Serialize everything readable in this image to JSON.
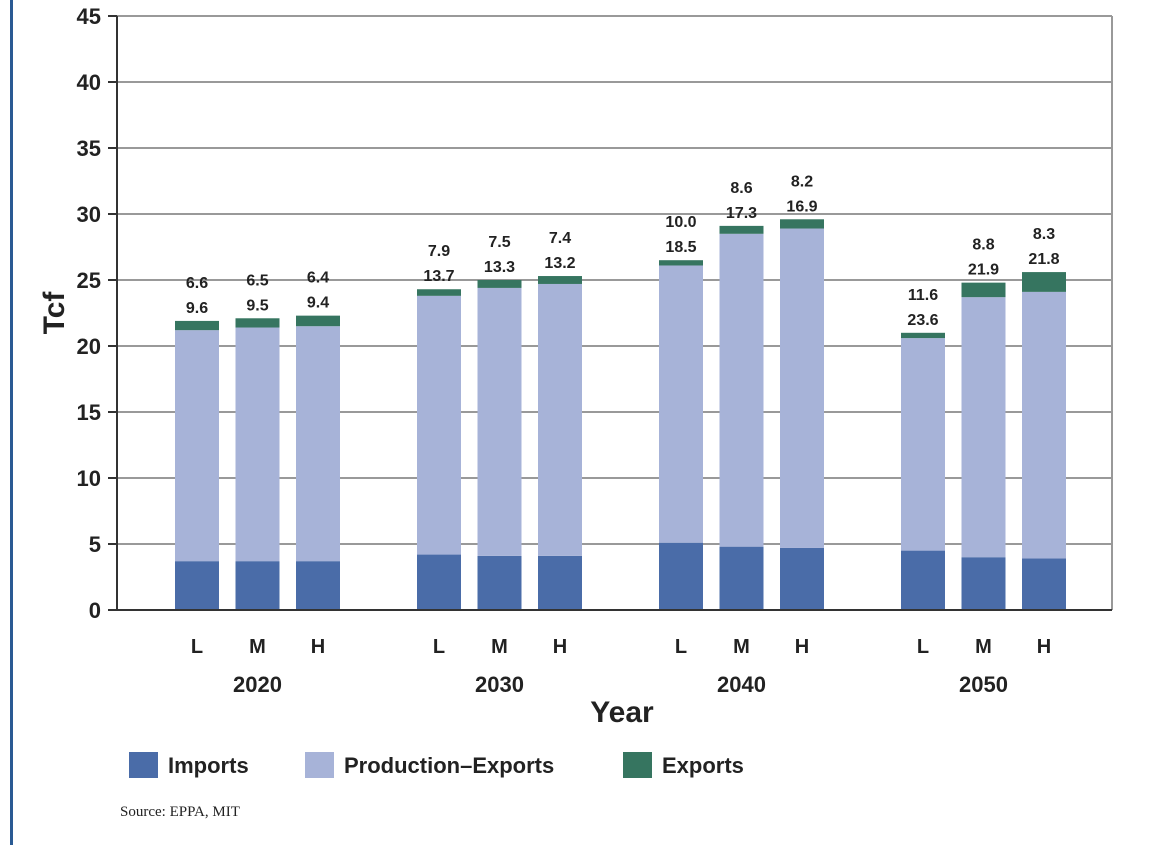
{
  "chart_data": {
    "type": "bar",
    "stacked": true,
    "ylabel": "Tcf",
    "xlabel": "Year",
    "ylim": [
      0,
      45
    ],
    "yticks": [
      0,
      5,
      10,
      15,
      20,
      25,
      30,
      35,
      40,
      45
    ],
    "grid": true,
    "legend_position": "bottom",
    "groups": [
      {
        "label": "2020",
        "bars": [
          {
            "label": "L",
            "imports": 3.7,
            "production_exports": 17.5,
            "exports": 0.7,
            "label_top": "6.6",
            "label_bottom": "9.6"
          },
          {
            "label": "M",
            "imports": 3.7,
            "production_exports": 17.7,
            "exports": 0.7,
            "label_top": "6.5",
            "label_bottom": "9.5"
          },
          {
            "label": "H",
            "imports": 3.7,
            "production_exports": 17.8,
            "exports": 0.8,
            "label_top": "6.4",
            "label_bottom": "9.4"
          }
        ]
      },
      {
        "label": "2030",
        "bars": [
          {
            "label": "L",
            "imports": 4.2,
            "production_exports": 19.6,
            "exports": 0.5,
            "label_top": "7.9",
            "label_bottom": "13.7"
          },
          {
            "label": "M",
            "imports": 4.1,
            "production_exports": 20.3,
            "exports": 0.6,
            "label_top": "7.5",
            "label_bottom": "13.3"
          },
          {
            "label": "H",
            "imports": 4.1,
            "production_exports": 20.6,
            "exports": 0.6,
            "label_top": "7.4",
            "label_bottom": "13.2"
          }
        ]
      },
      {
        "label": "2040",
        "bars": [
          {
            "label": "L",
            "imports": 5.1,
            "production_exports": 21.0,
            "exports": 0.4,
            "label_top": "10.0",
            "label_bottom": "18.5"
          },
          {
            "label": "M",
            "imports": 4.8,
            "production_exports": 23.7,
            "exports": 0.6,
            "label_top": "8.6",
            "label_bottom": "17.3"
          },
          {
            "label": "H",
            "imports": 4.7,
            "production_exports": 24.2,
            "exports": 0.7,
            "label_top": "8.2",
            "label_bottom": "16.9"
          }
        ]
      },
      {
        "label": "2050",
        "bars": [
          {
            "label": "L",
            "imports": 4.5,
            "production_exports": 16.1,
            "exports": 0.4,
            "label_top": "11.6",
            "label_bottom": "23.6"
          },
          {
            "label": "M",
            "imports": 4.0,
            "production_exports": 19.7,
            "exports": 1.1,
            "label_top": "8.8",
            "label_bottom": "21.9"
          },
          {
            "label": "H",
            "imports": 3.9,
            "production_exports": 20.2,
            "exports": 1.5,
            "label_top": "8.3",
            "label_bottom": "21.8"
          }
        ]
      }
    ],
    "series": [
      {
        "key": "imports",
        "name": "Imports",
        "color": "#4a6ca8"
      },
      {
        "key": "production_exports",
        "name": "Production–Exports",
        "color": "#a7b3d8"
      },
      {
        "key": "exports",
        "name": "Exports",
        "color": "#367560"
      }
    ]
  },
  "source": "Source: EPPA, MIT"
}
